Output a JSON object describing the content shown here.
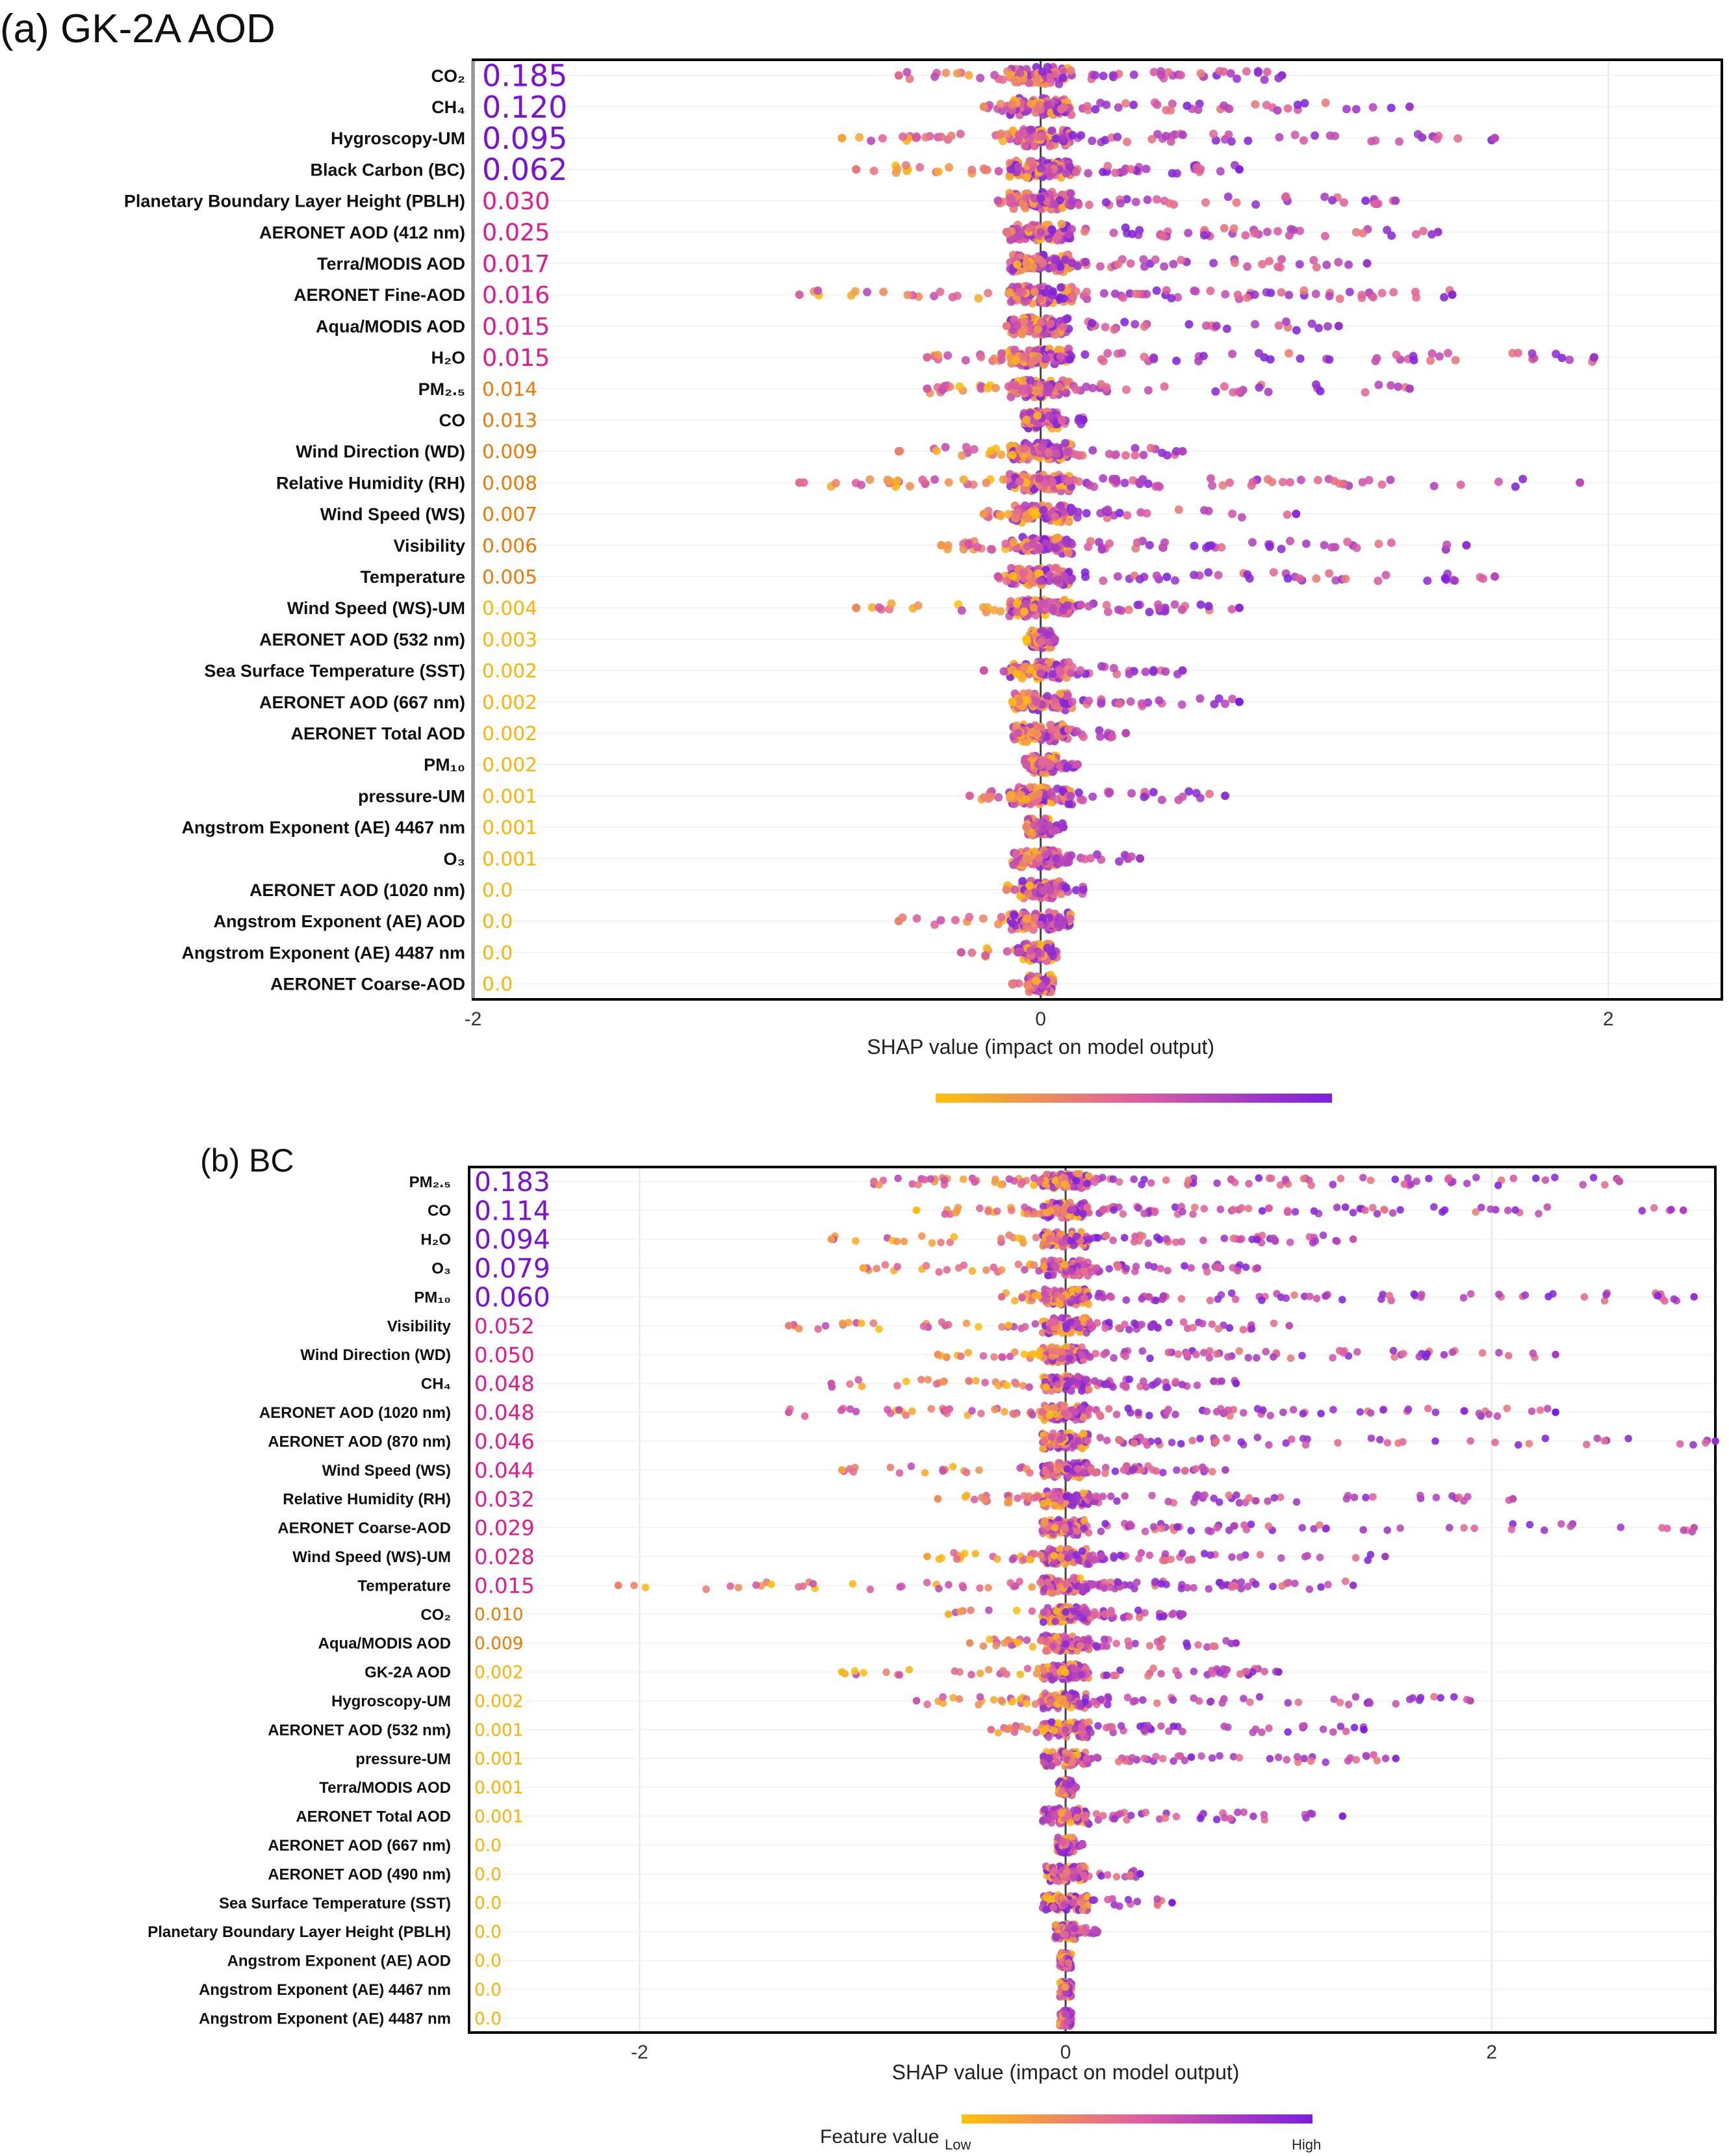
{
  "colors": {
    "low": "#ffc107",
    "mid": "#e05fa0",
    "high": "#7a1fe0",
    "imp_high": "#7b10dd",
    "imp_mid": "#e5188e",
    "imp_low": "#f07800",
    "imp_lowest": "#ffb300"
  },
  "colorbar": {
    "label": "Feature value",
    "low_label": "Low",
    "high_label": "High"
  },
  "chart_data": [
    {
      "type": "scatter",
      "subtype": "shap-beeswarm",
      "title": "(a) GK-2A AOD",
      "xlabel": "SHAP value (impact on model output)",
      "xlim": [
        -2,
        2.4
      ],
      "xticks": [
        -2,
        0,
        2
      ],
      "features": [
        {
          "name": "CO₂",
          "importance": "0.185",
          "spread": [
            -0.5,
            0.85
          ]
        },
        {
          "name": "CH₄",
          "importance": "0.120",
          "spread": [
            -0.2,
            1.3
          ]
        },
        {
          "name": "Hygroscopy-UM",
          "importance": "0.095",
          "spread": [
            -0.7,
            1.6
          ]
        },
        {
          "name": "Black Carbon (BC)",
          "importance": "0.062",
          "spread": [
            -0.65,
            0.7
          ]
        },
        {
          "name": "Planetary Boundary Layer Height (PBLH)",
          "importance": "0.030",
          "spread": [
            -0.15,
            1.25
          ]
        },
        {
          "name": "AERONET AOD (412 nm)",
          "importance": "0.025",
          "spread": [
            -0.12,
            1.4
          ]
        },
        {
          "name": "Terra/MODIS AOD",
          "importance": "0.017",
          "spread": [
            -0.05,
            1.15
          ]
        },
        {
          "name": "AERONET Fine-AOD",
          "importance": "0.016",
          "spread": [
            -0.85,
            1.45
          ]
        },
        {
          "name": "Aqua/MODIS AOD",
          "importance": "0.015",
          "spread": [
            -0.12,
            1.05
          ]
        },
        {
          "name": "H₂O",
          "importance": "0.015",
          "spread": [
            -0.4,
            1.95
          ]
        },
        {
          "name": "PM₂.₅",
          "importance": "0.014",
          "spread": [
            -0.4,
            1.3
          ]
        },
        {
          "name": "CO",
          "importance": "0.013",
          "spread": [
            -0.05,
            0.15
          ]
        },
        {
          "name": "Wind Direction (WD)",
          "importance": "0.009",
          "spread": [
            -0.5,
            0.5
          ]
        },
        {
          "name": "Relative Humidity (RH)",
          "importance": "0.008",
          "spread": [
            -0.85,
            1.9
          ]
        },
        {
          "name": "Wind Speed (WS)",
          "importance": "0.007",
          "spread": [
            -0.2,
            0.9
          ]
        },
        {
          "name": "Visibility",
          "importance": "0.006",
          "spread": [
            -0.35,
            1.5
          ]
        },
        {
          "name": "Temperature",
          "importance": "0.005",
          "spread": [
            -0.15,
            1.6
          ]
        },
        {
          "name": "Wind Speed (WS)-UM",
          "importance": "0.004",
          "spread": [
            -0.65,
            0.7
          ]
        },
        {
          "name": "AERONET AOD (532 nm)",
          "importance": "0.003",
          "spread": [
            -0.05,
            0.05
          ]
        },
        {
          "name": "Sea Surface Temperature (SST)",
          "importance": "0.002",
          "spread": [
            -0.2,
            0.5
          ]
        },
        {
          "name": "AERONET AOD (667 nm)",
          "importance": "0.002",
          "spread": [
            -0.1,
            0.7
          ]
        },
        {
          "name": "AERONET Total AOD",
          "importance": "0.002",
          "spread": [
            -0.08,
            0.3
          ]
        },
        {
          "name": "PM₁₀",
          "importance": "0.002",
          "spread": [
            -0.05,
            0.13
          ]
        },
        {
          "name": "pressure-UM",
          "importance": "0.001",
          "spread": [
            -0.25,
            0.65
          ]
        },
        {
          "name": "Angstrom Exponent (AE) 4467 nm",
          "importance": "0.001",
          "spread": [
            -0.05,
            0.08
          ]
        },
        {
          "name": "O₃",
          "importance": "0.001",
          "spread": [
            -0.05,
            0.35
          ]
        },
        {
          "name": "AERONET AOD (1020 nm)",
          "importance": "0.0",
          "spread": [
            -0.12,
            0.15
          ]
        },
        {
          "name": "Angstrom Exponent (AE) AOD",
          "importance": "0.0",
          "spread": [
            -0.5,
            0.08
          ]
        },
        {
          "name": "Angstrom Exponent (AE) 4487 nm",
          "importance": "0.0",
          "spread": [
            -0.28,
            -0.08
          ]
        },
        {
          "name": "AERONET Coarse-AOD",
          "importance": "0.0",
          "spread": [
            -0.1,
            0.02
          ]
        }
      ]
    },
    {
      "type": "scatter",
      "subtype": "shap-beeswarm",
      "title": "(b) BC",
      "xlabel": "SHAP value (impact on model output)",
      "xlim": [
        -2.8,
        3.05
      ],
      "xticks": [
        -2,
        0,
        2
      ],
      "features": [
        {
          "name": "PM₂.₅",
          "importance": "0.183",
          "spread": [
            -0.9,
            2.6
          ]
        },
        {
          "name": "CO",
          "importance": "0.114",
          "spread": [
            -0.7,
            2.9
          ]
        },
        {
          "name": "H₂O",
          "importance": "0.094",
          "spread": [
            -1.1,
            1.35
          ]
        },
        {
          "name": "O₃",
          "importance": "0.079",
          "spread": [
            -0.95,
            0.9
          ]
        },
        {
          "name": "PM₁₀",
          "importance": "0.060",
          "spread": [
            -0.3,
            2.95
          ]
        },
        {
          "name": "Visibility",
          "importance": "0.052",
          "spread": [
            -1.3,
            1.05
          ]
        },
        {
          "name": "Wind Direction (WD)",
          "importance": "0.050",
          "spread": [
            -0.6,
            2.3
          ]
        },
        {
          "name": "CH₄",
          "importance": "0.048",
          "spread": [
            -1.1,
            0.8
          ]
        },
        {
          "name": "AERONET AOD (1020 nm)",
          "importance": "0.048",
          "spread": [
            -1.3,
            2.3
          ]
        },
        {
          "name": "AERONET AOD (870 nm)",
          "importance": "0.046",
          "spread": [
            -0.1,
            3.05
          ]
        },
        {
          "name": "Wind Speed (WS)",
          "importance": "0.044",
          "spread": [
            -1.05,
            0.75
          ]
        },
        {
          "name": "Relative Humidity (RH)",
          "importance": "0.032",
          "spread": [
            -0.6,
            2.1
          ]
        },
        {
          "name": "AERONET Coarse-AOD",
          "importance": "0.029",
          "spread": [
            -0.05,
            2.95
          ]
        },
        {
          "name": "Wind Speed (WS)-UM",
          "importance": "0.028",
          "spread": [
            -0.65,
            1.5
          ]
        },
        {
          "name": "Temperature",
          "importance": "0.015",
          "spread": [
            -2.1,
            1.35
          ]
        },
        {
          "name": "CO₂",
          "importance": "0.010",
          "spread": [
            -0.55,
            0.55
          ]
        },
        {
          "name": "Aqua/MODIS AOD",
          "importance": "0.009",
          "spread": [
            -0.45,
            0.8
          ]
        },
        {
          "name": "GK-2A AOD",
          "importance": "0.002",
          "spread": [
            -1.05,
            1.0
          ]
        },
        {
          "name": "Hygroscopy-UM",
          "importance": "0.002",
          "spread": [
            -0.7,
            1.9
          ]
        },
        {
          "name": "AERONET AOD (532 nm)",
          "importance": "0.001",
          "spread": [
            -0.35,
            1.4
          ]
        },
        {
          "name": "pressure-UM",
          "importance": "0.001",
          "spread": [
            0.1,
            1.55
          ]
        },
        {
          "name": "Terra/MODIS AOD",
          "importance": "0.001",
          "spread": [
            -0.02,
            0.05
          ]
        },
        {
          "name": "AERONET Total AOD",
          "importance": "0.001",
          "spread": [
            -0.02,
            1.3
          ]
        },
        {
          "name": "AERONET AOD (667 nm)",
          "importance": "0.0",
          "spread": [
            -0.02,
            0.08
          ]
        },
        {
          "name": "AERONET AOD (490 nm)",
          "importance": "0.0",
          "spread": [
            -0.02,
            0.35
          ]
        },
        {
          "name": "Sea Surface Temperature (SST)",
          "importance": "0.0",
          "spread": [
            -0.02,
            0.5
          ]
        },
        {
          "name": "Planetary Boundary Layer Height (PBLH)",
          "importance": "0.0",
          "spread": [
            -0.02,
            0.15
          ]
        },
        {
          "name": "Angstrom Exponent (AE) AOD",
          "importance": "0.0",
          "spread": [
            -0.02,
            0.02
          ]
        },
        {
          "name": "Angstrom Exponent (AE) 4467 nm",
          "importance": "0.0",
          "spread": [
            -0.02,
            0.02
          ]
        },
        {
          "name": "Angstrom Exponent (AE) 4487 nm",
          "importance": "0.0",
          "spread": [
            -0.02,
            0.02
          ]
        }
      ]
    }
  ]
}
